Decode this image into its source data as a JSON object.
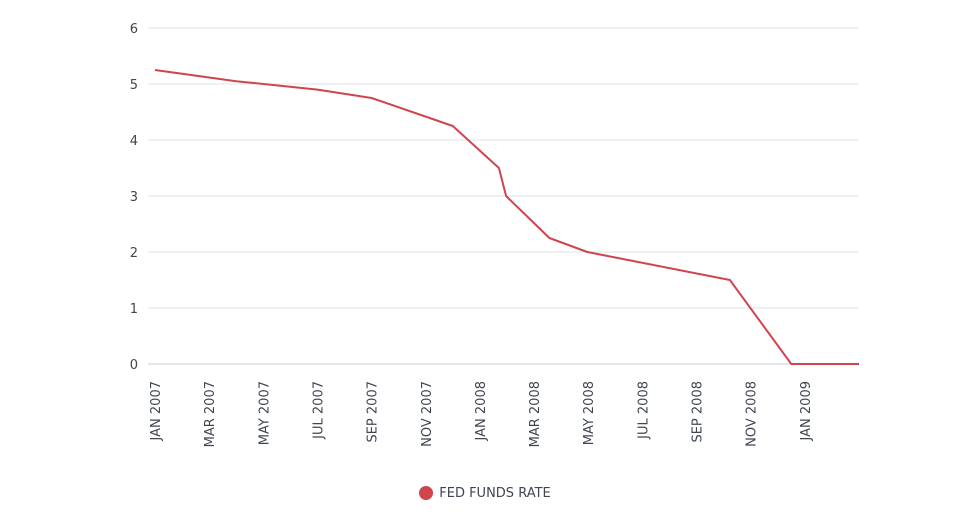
{
  "chart_data": {
    "type": "line",
    "x": [
      "2007-01",
      "2007-03",
      "2007-05",
      "2007-07",
      "2007-09",
      "2007-10",
      "2007-12",
      "2008-01",
      "2008-02",
      "2008-03",
      "2008-05",
      "2008-07",
      "2008-09",
      "2008-10",
      "2008-12",
      "2009-01",
      "2009-03"
    ],
    "categories": [
      "JAN 2007",
      "MAR 2007",
      "MAY 2007",
      "JUL 2007",
      "SEP 2007",
      "NOV 2007",
      "JAN 2008",
      "MAR 2008",
      "MAY 2008",
      "JUL 2008",
      "SEP 2008",
      "NOV 2008",
      "JAN 2009"
    ],
    "series": [
      {
        "name": "FED FUNDS RATE",
        "color": "#d0444e",
        "x": [
          "2007-01",
          "2007-04",
          "2007-07",
          "2007-09",
          "2007-12",
          "2008-01-22",
          "2008-01-30",
          "2008-03-18",
          "2008-04-30",
          "2008-10-08",
          "2008-12-16",
          "2009-03"
        ],
        "values": [
          5.25,
          5.05,
          4.9,
          4.75,
          4.25,
          3.5,
          3.0,
          2.25,
          2.0,
          1.5,
          0.0,
          0.0
        ]
      }
    ],
    "title": "",
    "xlabel": "",
    "ylabel": "",
    "ylim": [
      0,
      6
    ],
    "yticks": [
      0,
      1,
      2,
      3,
      4,
      5,
      6
    ],
    "grid": true,
    "legend": "bottom-center"
  }
}
